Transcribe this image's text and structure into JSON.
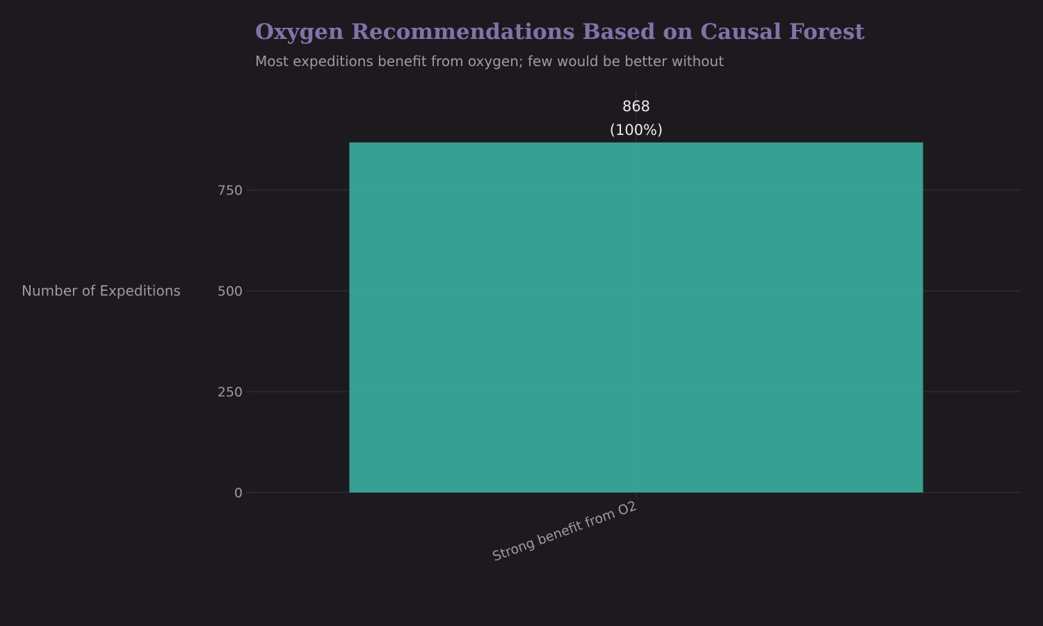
{
  "chart_data": {
    "type": "bar",
    "title": "Oxygen Recommendations Based on Causal Forest",
    "subtitle": "Most expeditions benefit from oxygen; few would be better without",
    "xlabel": "",
    "ylabel": "Number of Expeditions",
    "categories": [
      "Strong benefit from O2"
    ],
    "values": [
      868
    ],
    "data_labels": [
      {
        "count": "868",
        "percent": "(100%)"
      }
    ],
    "yticks": [
      0,
      250,
      500,
      750
    ],
    "ylim": [
      0,
      997
    ],
    "grid": true,
    "bar_color": "#3aa89a",
    "background": "#1c1a1f",
    "title_color": "#8073a8"
  }
}
